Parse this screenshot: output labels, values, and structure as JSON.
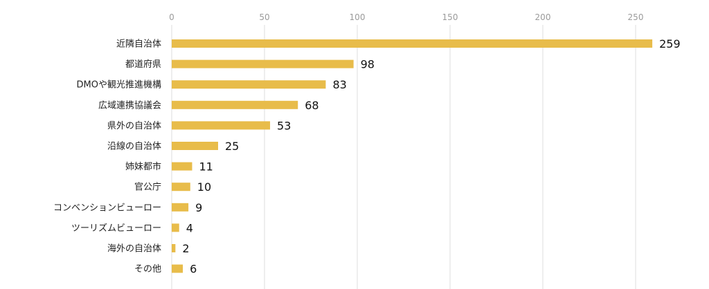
{
  "chart_data": {
    "type": "bar",
    "orientation": "horizontal",
    "categories": [
      "近隣自治体",
      "都道府県",
      "DMOや観光推進機構",
      "広域連携協議会",
      "県外の自治体",
      "沿線の自治体",
      "姉妹都市",
      "官公庁",
      "コンベンションビューロー",
      "ツーリズムビューロー",
      "海外の自治体",
      "その他"
    ],
    "values": [
      259,
      98,
      83,
      68,
      53,
      25,
      11,
      10,
      9,
      4,
      2,
      6
    ],
    "xlim": [
      0,
      260
    ],
    "xticks": [
      0,
      50,
      100,
      150,
      200,
      250
    ],
    "grid": true,
    "title": "",
    "xlabel": "",
    "ylabel": "",
    "bar_color": "#E8BC4A",
    "grid_color": "#DCDCDC"
  }
}
